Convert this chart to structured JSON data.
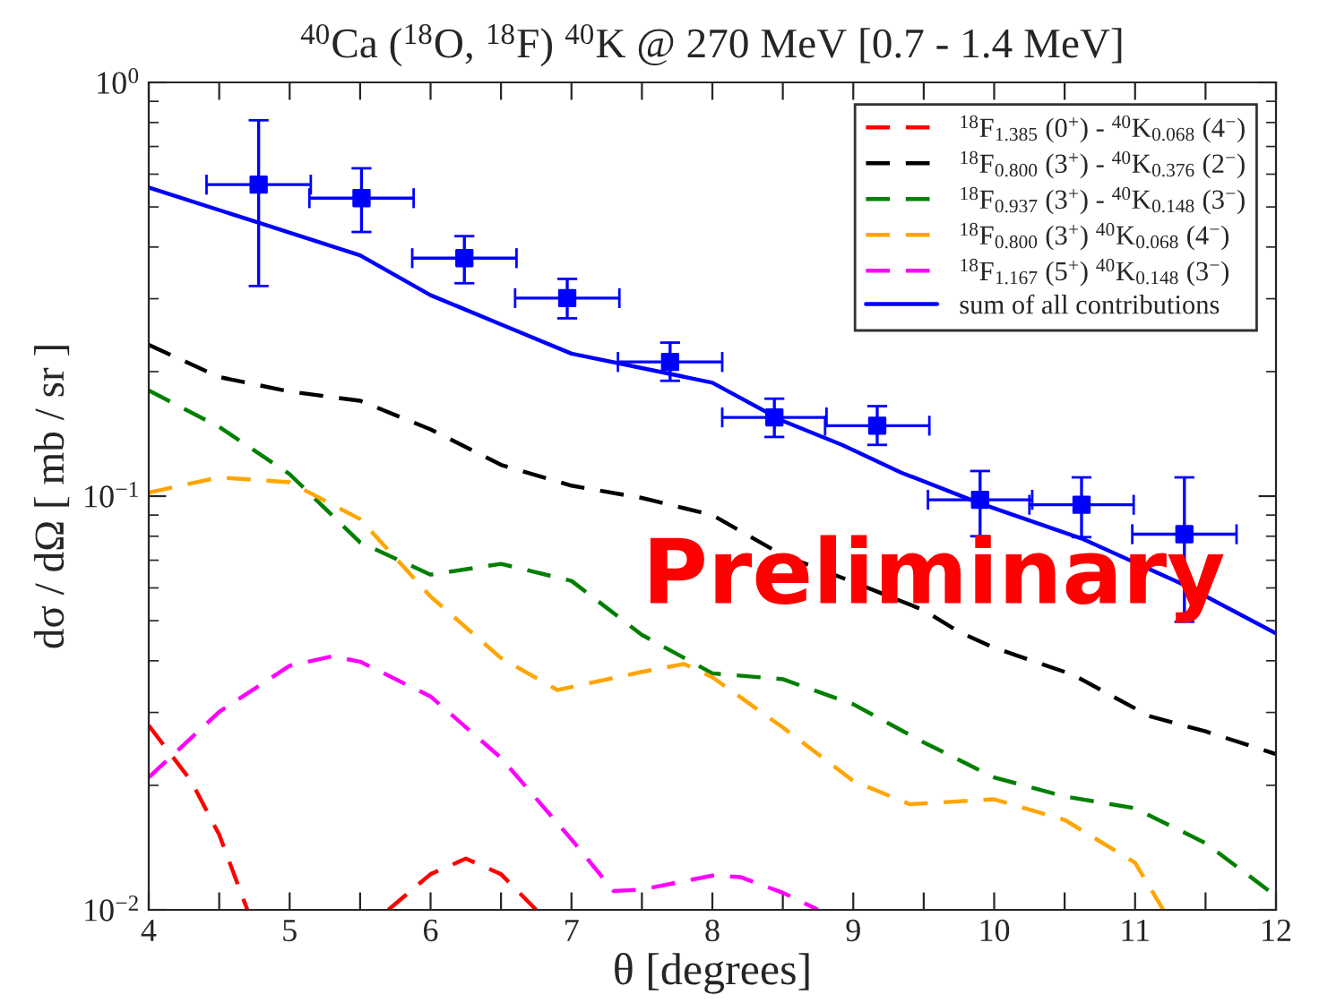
{
  "chart_data": {
    "type": "line",
    "title": "$^{40}$Ca ($^{18}$O, $^{18}$F) $^{40}$K @ 270 MeV [0.7 - 1.4 MeV]",
    "xlabel": "θ [degrees]",
    "ylabel": "dσ / dΩ [ mb / sr ]",
    "log": "y",
    "grid": false,
    "legend": "top right",
    "xlim": [
      4,
      12
    ],
    "xticks": [
      4,
      {
        "value": 4.5,
        "label": null
      },
      5,
      {
        "value": 5.5,
        "label": null
      },
      6,
      {
        "value": 6.5,
        "label": null
      },
      7,
      {
        "value": 7.5,
        "label": null
      },
      8,
      {
        "value": 8.5,
        "label": null
      },
      9,
      {
        "value": 9.5,
        "label": null
      },
      10,
      {
        "value": 10.5,
        "label": null
      },
      11,
      {
        "value": 11.5,
        "label": null
      },
      12
    ],
    "ylim": [
      0.01,
      1
    ],
    "yticks": [
      {
        "value": 0.01,
        "label": "10$^{−2}$"
      },
      {
        "value": 0.1,
        "label": "10$^{−1}$"
      },
      {
        "value": 1,
        "label": "10$^{0}$"
      }
    ],
    "annotations": [
      "Preliminary"
    ],
    "series": [
      {
        "name": "$^{18}$F$_{1.385}$ (0$^{+}$) - $^{40}$K$_{0.068}$ (4$^{−}$)",
        "line_style": "dashed",
        "marker": "none",
        "color": "#ff0000",
        "x": [
          4,
          4.3,
          4.5,
          4.7,
          5.2,
          5.7,
          6.0,
          6.25,
          6.5,
          6.75
        ],
        "values": [
          0.0279,
          0.0205,
          0.0152,
          0.01,
          null,
          0.01,
          0.0122,
          0.0133,
          0.0122,
          0.01
        ]
      },
      {
        "name": "$^{18}$F$_{0.800}$ (3$^{+}$) - $^{40}$K$_{0.376}$ (2$^{−}$)",
        "line_style": "dashed",
        "marker": "none",
        "color": "#000000",
        "x": [
          4,
          4.5,
          5,
          5.5,
          6,
          6.5,
          7,
          7.5,
          8,
          8.5,
          9,
          9.5,
          9.75,
          10,
          10.56,
          11.1,
          11.5,
          12
        ],
        "values": [
          0.232,
          0.194,
          0.179,
          0.17,
          0.145,
          0.119,
          0.106,
          0.099,
          0.09,
          0.072,
          0.062,
          0.053,
          0.047,
          0.043,
          0.037,
          0.0294,
          0.027,
          0.0238
        ]
      },
      {
        "name": "$^{18}$F$_{0.937}$ (3$^{+}$) - $^{40}$K$_{0.148}$ (3$^{−}$)",
        "line_style": "dashed",
        "marker": "none",
        "color": "#008000",
        "x": [
          4,
          4.5,
          5,
          5.5,
          6,
          6.5,
          7,
          7.5,
          8,
          8.5,
          9,
          9.5,
          10,
          10.5,
          11,
          11.5,
          12
        ],
        "values": [
          0.18,
          0.147,
          0.113,
          0.0773,
          0.0646,
          0.0686,
          0.0624,
          0.0462,
          0.0373,
          0.0361,
          0.0314,
          0.0254,
          0.0209,
          0.0188,
          0.0176,
          0.0145,
          0.0108
        ]
      },
      {
        "name": "$^{18}$F$_{0.800}$ (3$^{+}$) $^{40}$K$_{0.068}$ (4$^{−}$)",
        "line_style": "dashed",
        "marker": "none",
        "color": "#ffa500",
        "x": [
          4,
          4.5,
          5,
          5.5,
          6,
          6.5,
          6.9,
          7.5,
          7.8,
          8,
          8.5,
          9,
          9.4,
          10,
          10.5,
          11,
          11.2
        ],
        "values": [
          0.102,
          0.111,
          0.108,
          0.088,
          0.0572,
          0.0406,
          0.034,
          0.0376,
          0.0393,
          0.0365,
          0.0276,
          0.0205,
          0.018,
          0.0185,
          0.0165,
          0.013,
          0.01
        ]
      },
      {
        "name": "$^{18}$F$_{1.167}$ (5$^{+}$) $^{40}$K$_{0.148}$ (3$^{−}$)",
        "line_style": "dashed",
        "marker": "none",
        "color": "#ff00ff",
        "x": [
          4,
          4.5,
          5,
          5.3,
          5.5,
          6,
          6.5,
          7,
          7.3,
          7.5,
          8,
          8.2,
          8.5,
          8.75
        ],
        "values": [
          0.0209,
          0.0301,
          0.0389,
          0.041,
          0.0398,
          0.0328,
          0.0233,
          0.0148,
          0.0111,
          0.0112,
          0.0121,
          0.012,
          0.011,
          0.01
        ]
      },
      {
        "name": "sum of all contributions",
        "line_style": "solid",
        "marker": "none",
        "color": "#0000ff",
        "x": [
          4,
          4.78,
          5.5,
          6,
          6.5,
          7,
          7.5,
          8,
          8.5,
          8.92,
          9.34,
          9.9,
          10.62,
          11.35,
          12
        ],
        "values": [
          0.557,
          0.458,
          0.382,
          0.306,
          0.26,
          0.221,
          0.204,
          0.188,
          0.152,
          0.133,
          0.114,
          0.096,
          0.079,
          0.061,
          0.0466
        ]
      },
      {
        "type": "scatter",
        "marker": "square",
        "color": "#0000ff",
        "x": [
          4.78,
          5.51,
          6.24,
          6.97,
          7.7,
          8.44,
          9.17,
          9.9,
          10.62,
          11.35
        ],
        "values": [
          0.566,
          0.525,
          0.376,
          0.301,
          0.211,
          0.155,
          0.148,
          0.098,
          0.0953,
          0.0809
        ],
        "errors": [
          [
            0.322,
            0.81
          ],
          [
            0.435,
            0.62
          ],
          [
            0.327,
            0.425
          ],
          [
            0.269,
            0.335
          ],
          [
            0.19,
            0.235
          ],
          [
            0.139,
            0.172
          ],
          [
            0.133,
            0.165
          ],
          [
            0.08,
            0.115
          ],
          [
            0.0796,
            0.111
          ],
          [
            0.0497,
            0.111
          ]
        ],
        "xerrors": [
          0.37,
          0.37,
          0.37,
          0.37,
          0.37,
          0.37,
          0.37,
          0.37,
          0.37,
          0.37
        ]
      }
    ]
  }
}
